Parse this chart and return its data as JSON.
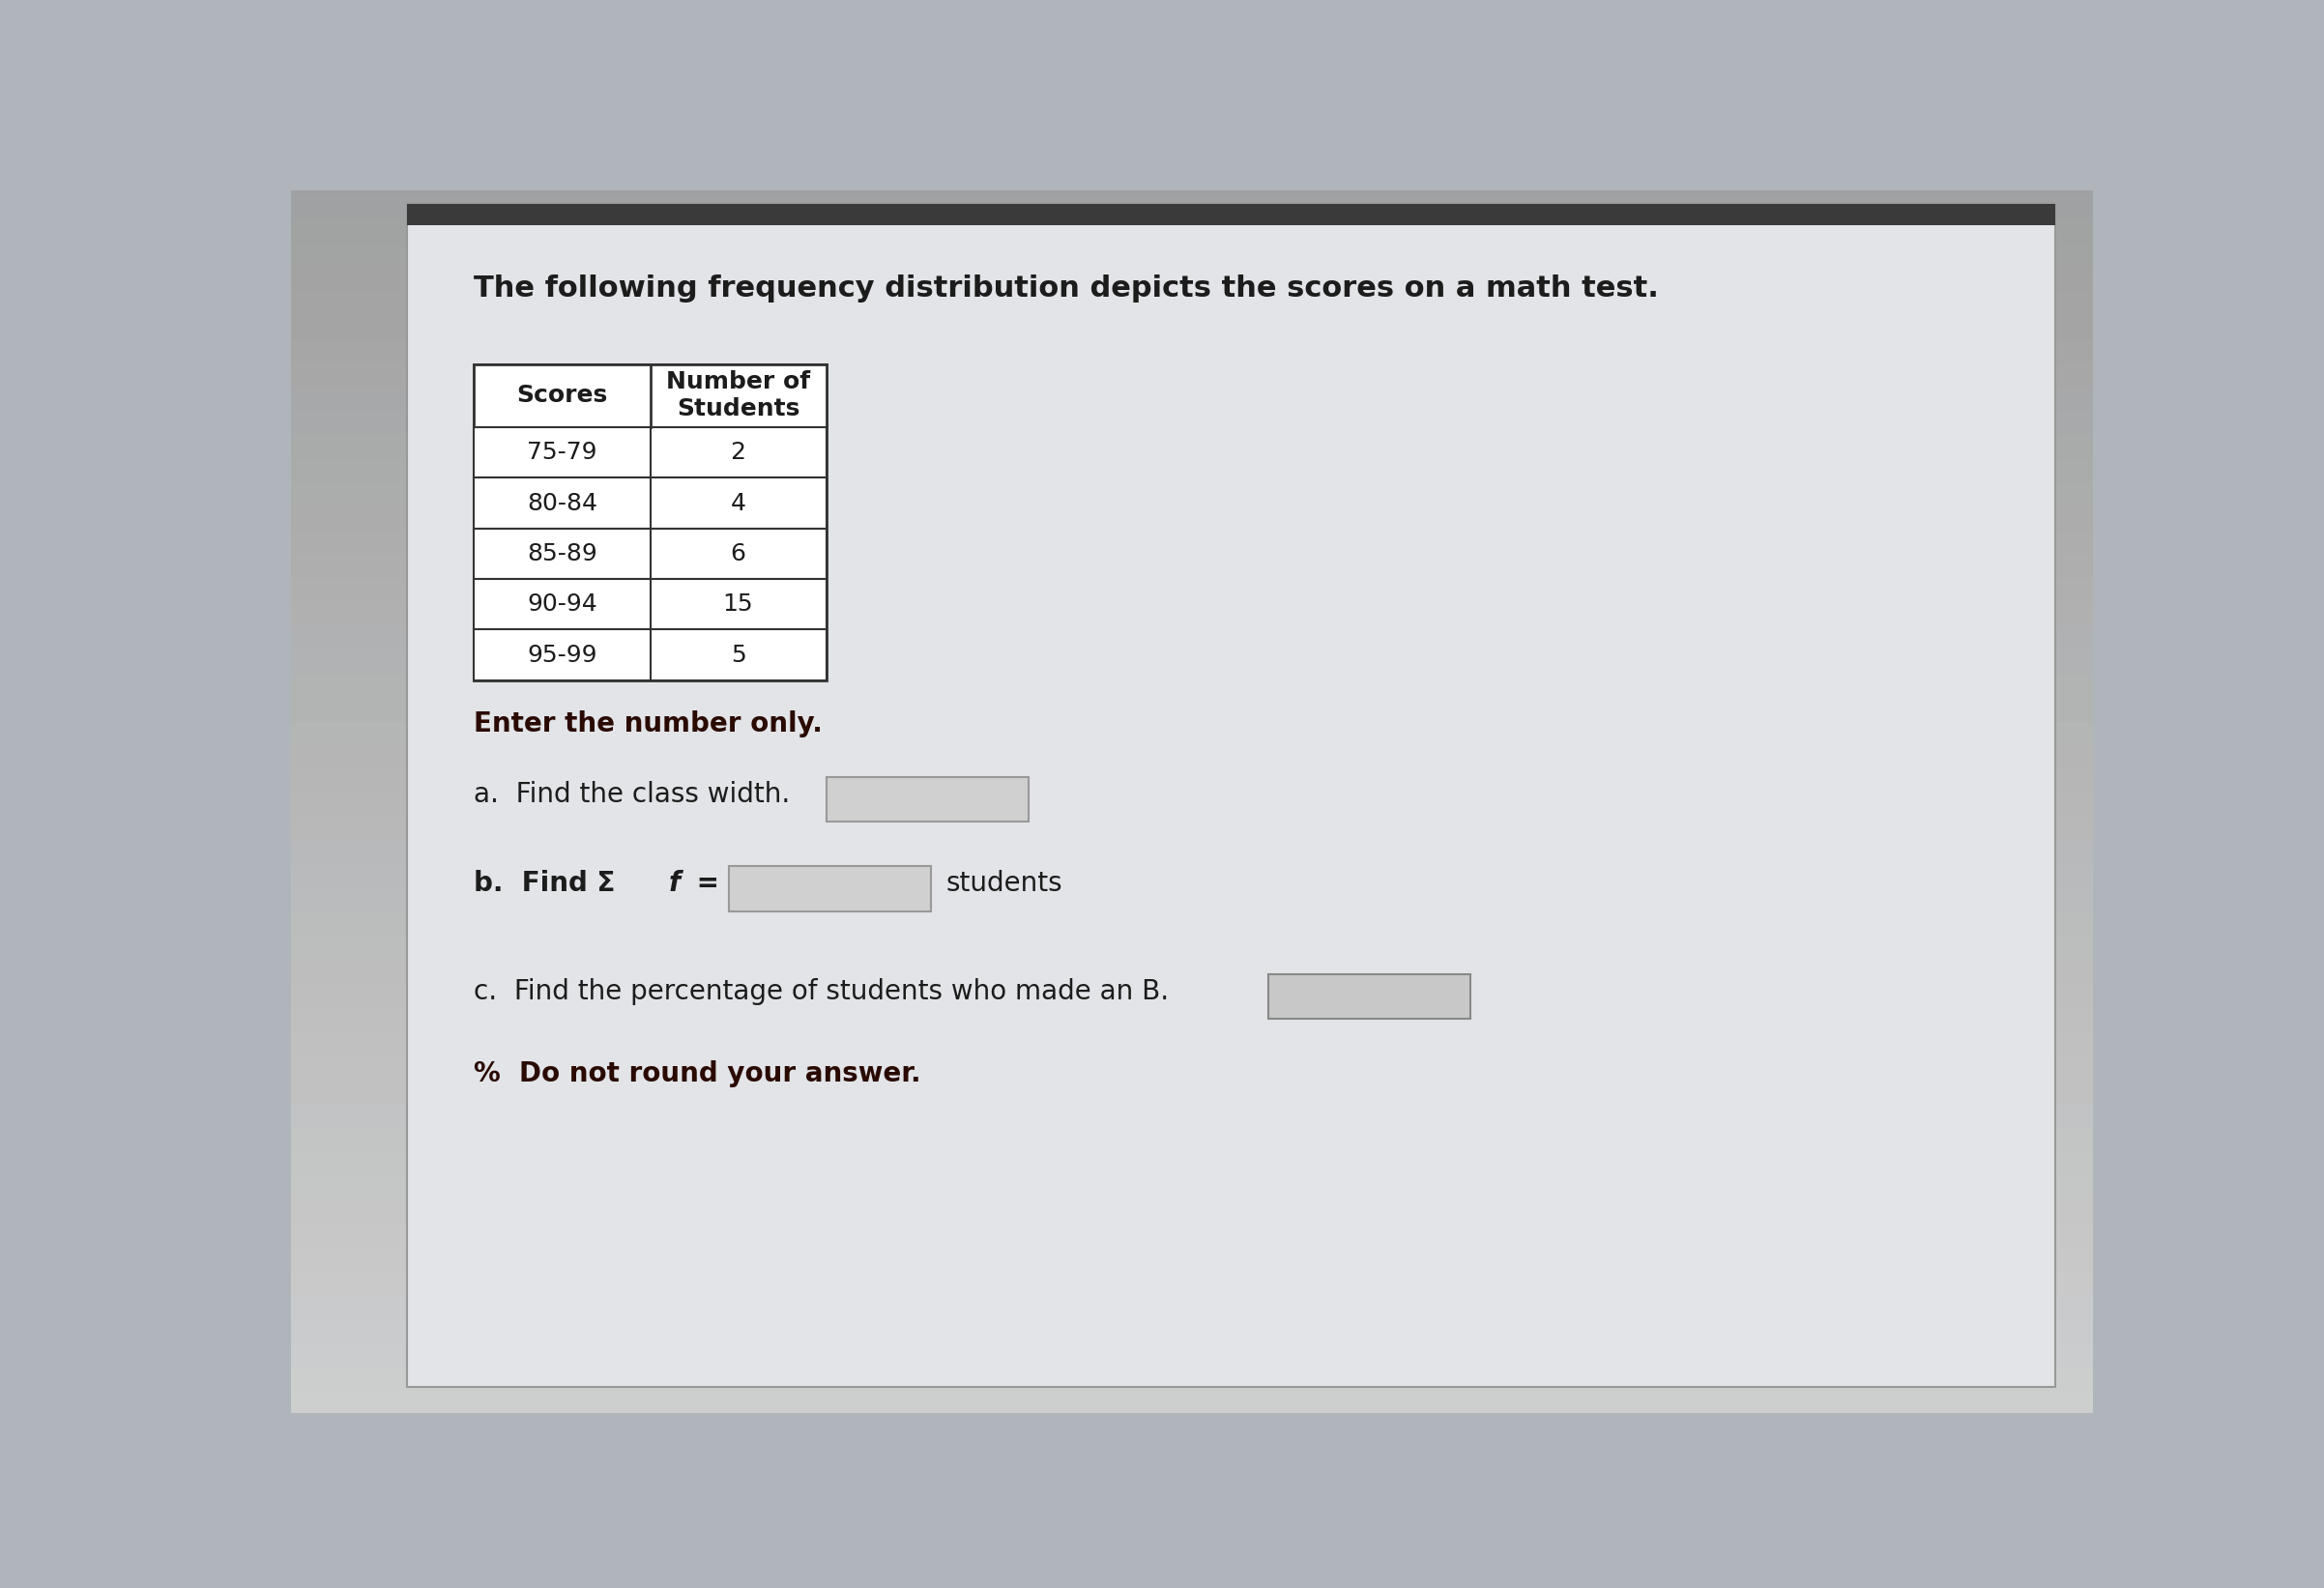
{
  "title": "The following frequency distribution depicts the scores on a math test.",
  "title_fontsize": 22,
  "title_fontweight": "bold",
  "table_header_col1": "Scores",
  "table_header_col2": "Number of\nStudents",
  "table_rows": [
    [
      "75-79",
      "2"
    ],
    [
      "80-84",
      "4"
    ],
    [
      "85-89",
      "6"
    ],
    [
      "90-94",
      "15"
    ],
    [
      "95-99",
      "5"
    ]
  ],
  "instruction": "Enter the number only.",
  "part_a_text": "a.  Find the class width.",
  "part_b_text1": "b.  Find Σ",
  "part_b_italic": "f",
  "part_b_text2": " =",
  "part_b_end": "students",
  "part_c": "c.  Find the percentage of students who made an B.",
  "part_d": "%  Do not round your answer.",
  "outer_bg": "#b0b5bc",
  "panel_bg": "#d8d8d8",
  "white_area": "#e8e8e8",
  "text_dark": "#1c1c1c",
  "text_bold_dark": "#1a0a00",
  "input_bg": "#d0d0d0",
  "input_edge": "#999999",
  "table_line": "#333333",
  "table_bg": "#ffffff",
  "header_bg": "#ffffff"
}
